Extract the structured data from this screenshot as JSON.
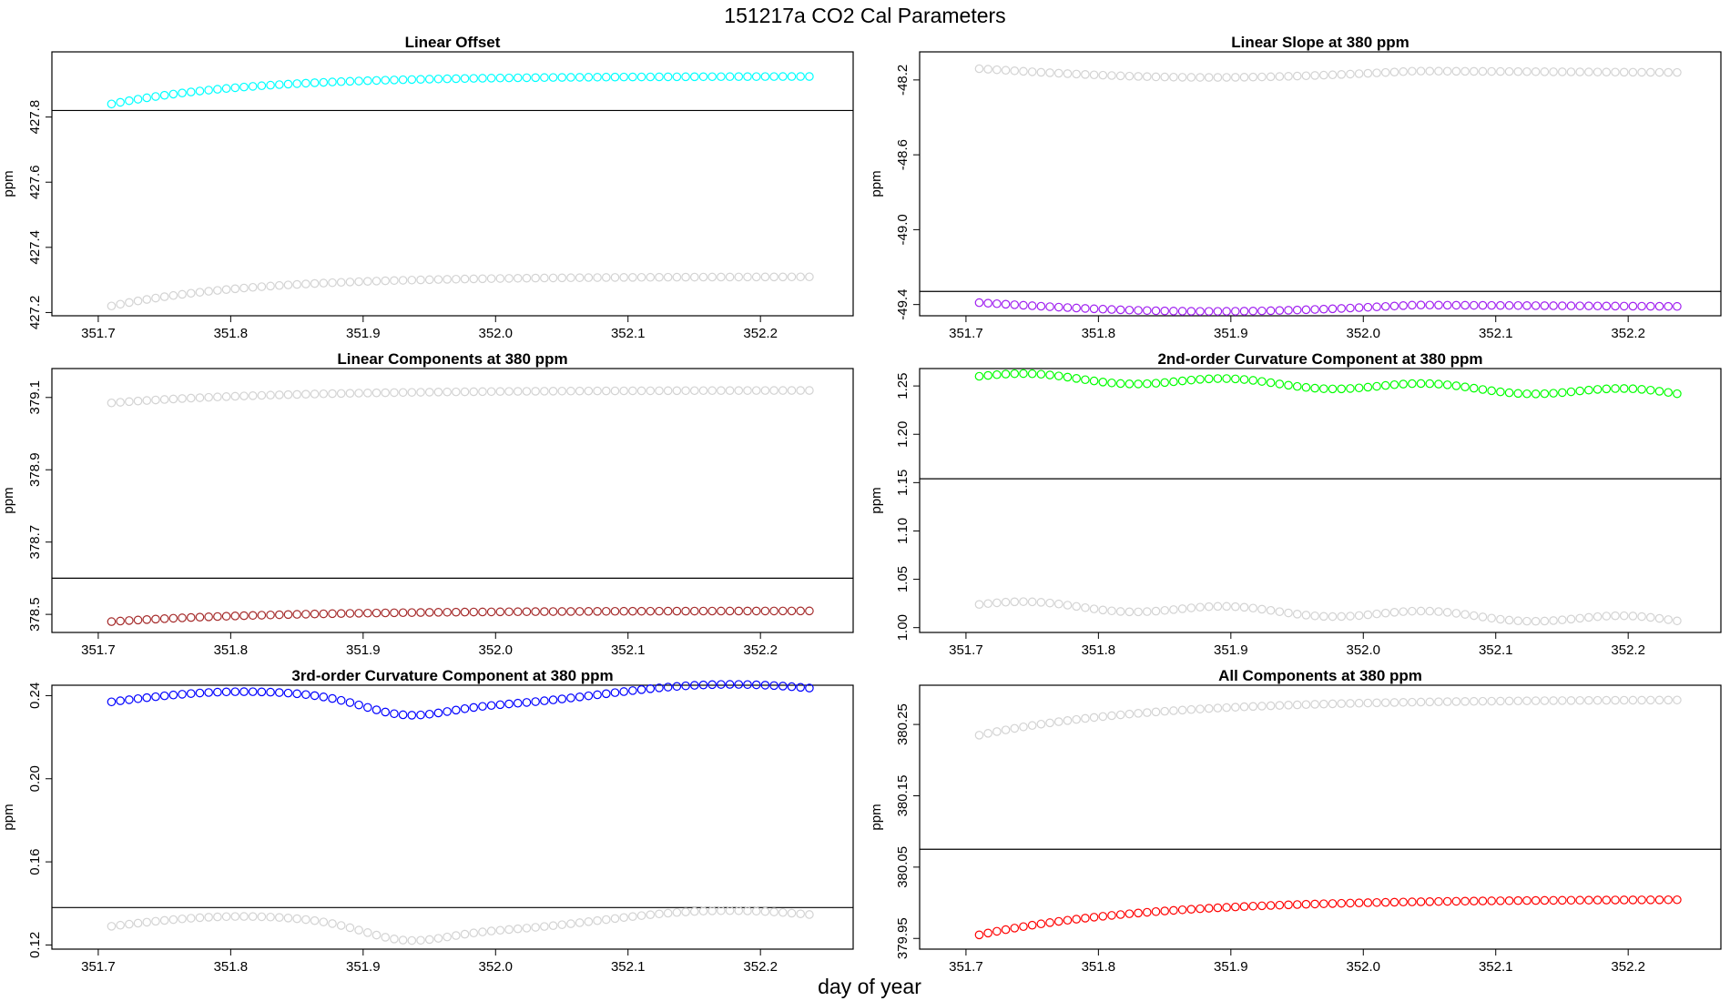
{
  "figure": {
    "title": "151217a   CO2 Cal Parameters",
    "xlabel": "day of year"
  },
  "chart_data": [
    {
      "type": "scatter",
      "title": "Linear Offset",
      "xlabel": "",
      "ylabel": "ppm",
      "xlim": [
        351.665,
        352.27
      ],
      "ylim": [
        427.19,
        428.0
      ],
      "xticks": [
        351.7,
        351.8,
        351.9,
        352.0,
        352.1,
        352.2
      ],
      "xtick_labels": [
        "351.7",
        "351.8",
        "351.9",
        "352.0",
        "352.1",
        "352.2"
      ],
      "yticks": [
        427.2,
        427.4,
        427.6,
        427.8
      ],
      "ytick_labels": [
        "427.2",
        "427.4",
        "427.6",
        "427.8"
      ],
      "grid": false,
      "x_start": 351.71,
      "x_step": 0.00667,
      "n_points": 80,
      "reference_line": 427.82,
      "series": [
        {
          "color": "#00FFFF",
          "start": 427.84,
          "end": 427.925,
          "shape": "sat",
          "rate": 0.05
        },
        {
          "color": "#D3D3D3",
          "start": 427.22,
          "end": 427.31,
          "shape": "sat",
          "rate": 0.05
        }
      ]
    },
    {
      "type": "scatter",
      "title": "Linear Slope at 380 ppm",
      "xlabel": "",
      "ylabel": "ppm",
      "xlim": [
        351.665,
        352.27
      ],
      "ylim": [
        -49.46,
        -48.05
      ],
      "xticks": [
        351.7,
        351.8,
        351.9,
        352.0,
        352.1,
        352.2
      ],
      "xtick_labels": [
        "351.7",
        "351.8",
        "351.9",
        "352.0",
        "352.1",
        "352.2"
      ],
      "yticks": [
        -49.4,
        -49.0,
        -48.6,
        -48.2
      ],
      "ytick_labels": [
        "-49.4",
        "-49.0",
        "-48.6",
        "-48.2"
      ],
      "grid": false,
      "x_start": 351.71,
      "x_step": 0.00667,
      "n_points": 80,
      "reference_line": -49.33,
      "series": [
        {
          "color": "#D3D3D3",
          "start": -48.14,
          "end": -48.16,
          "shape": "dip",
          "depth": 0.04
        },
        {
          "color": "#A020F0",
          "start": -49.39,
          "end": -49.41,
          "shape": "dip",
          "depth": 0.04
        }
      ]
    },
    {
      "type": "scatter",
      "title": "Linear Components at 380 ppm",
      "xlabel": "",
      "ylabel": "ppm",
      "xlim": [
        351.665,
        352.27
      ],
      "ylim": [
        378.45,
        379.18
      ],
      "xticks": [
        351.7,
        351.8,
        351.9,
        352.0,
        352.1,
        352.2
      ],
      "xtick_labels": [
        "351.7",
        "351.8",
        "351.9",
        "352.0",
        "352.1",
        "352.2"
      ],
      "yticks": [
        378.5,
        378.7,
        378.9,
        379.1
      ],
      "ytick_labels": [
        "378.5",
        "378.7",
        "378.9",
        "379.1"
      ],
      "grid": false,
      "x_start": 351.71,
      "x_step": 0.00667,
      "n_points": 80,
      "reference_line": 378.6,
      "series": [
        {
          "color": "#D3D3D3",
          "start": 379.085,
          "end": 379.12,
          "shape": "sat",
          "rate": 0.06
        },
        {
          "color": "#A52A2A",
          "start": 378.48,
          "end": 378.51,
          "shape": "sat",
          "rate": 0.06
        }
      ]
    },
    {
      "type": "scatter",
      "title": "2nd-order Curvature Component at 380 ppm",
      "xlabel": "",
      "ylabel": "ppm",
      "xlim": [
        351.665,
        352.27
      ],
      "ylim": [
        0.995,
        1.268
      ],
      "xticks": [
        351.7,
        351.8,
        351.9,
        352.0,
        352.1,
        352.2
      ],
      "xtick_labels": [
        "351.7",
        "351.8",
        "351.9",
        "352.0",
        "352.1",
        "352.2"
      ],
      "yticks": [
        1.0,
        1.05,
        1.1,
        1.15,
        1.2,
        1.25
      ],
      "ytick_labels": [
        "1.00",
        "1.05",
        "1.10",
        "1.15",
        "1.20",
        "1.25"
      ],
      "grid": false,
      "x_start": 351.71,
      "x_step": 0.00667,
      "n_points": 80,
      "reference_line": 1.154,
      "series": [
        {
          "color": "#00FF00",
          "start": 1.26,
          "end": 1.242,
          "shape": "wiggle",
          "amp": 0.004
        },
        {
          "color": "#D3D3D3",
          "start": 1.024,
          "end": 1.007,
          "shape": "wiggle",
          "amp": 0.004
        }
      ]
    },
    {
      "type": "scatter",
      "title": "3rd-order Curvature Component at 380 ppm",
      "xlabel": "",
      "ylabel": "ppm",
      "xlim": [
        351.665,
        352.27
      ],
      "ylim": [
        0.118,
        0.245
      ],
      "xticks": [
        351.7,
        351.8,
        351.9,
        352.0,
        352.1,
        352.2
      ],
      "xtick_labels": [
        "351.7",
        "351.8",
        "351.9",
        "352.0",
        "352.1",
        "352.2"
      ],
      "yticks": [
        0.12,
        0.16,
        0.2,
        0.24
      ],
      "ytick_labels": [
        "0.12",
        "0.16",
        "0.20",
        "0.24"
      ],
      "grid": false,
      "x_start": 351.71,
      "x_step": 0.00667,
      "n_points": 80,
      "reference_line": 0.138,
      "series": [
        {
          "color": "#0000FF",
          "start": 0.237,
          "end": 0.242,
          "shape": "wave",
          "amp": 0.004
        },
        {
          "color": "#D3D3D3",
          "start": 0.129,
          "end": 0.133,
          "shape": "wave",
          "amp": 0.004
        }
      ]
    },
    {
      "type": "scatter",
      "title": "All Components at 380 ppm",
      "xlabel": "",
      "ylabel": "ppm",
      "xlim": [
        351.665,
        352.27
      ],
      "ylim": [
        379.935,
        380.305
      ],
      "xticks": [
        351.7,
        351.8,
        351.9,
        352.0,
        352.1,
        352.2
      ],
      "xtick_labels": [
        "351.7",
        "351.8",
        "351.9",
        "352.0",
        "352.1",
        "352.2"
      ],
      "yticks": [
        379.95,
        380.05,
        380.15,
        380.25
      ],
      "ytick_labels": [
        "379.95",
        "380.05",
        "380.15",
        "380.25"
      ],
      "grid": false,
      "x_start": 351.71,
      "x_step": 0.00667,
      "n_points": 80,
      "reference_line": 380.075,
      "series": [
        {
          "color": "#D3D3D3",
          "start": 380.235,
          "end": 380.285,
          "shape": "sat",
          "rate": 0.06
        },
        {
          "color": "#FF0000",
          "start": 379.955,
          "end": 380.005,
          "shape": "sat",
          "rate": 0.06
        }
      ]
    }
  ]
}
